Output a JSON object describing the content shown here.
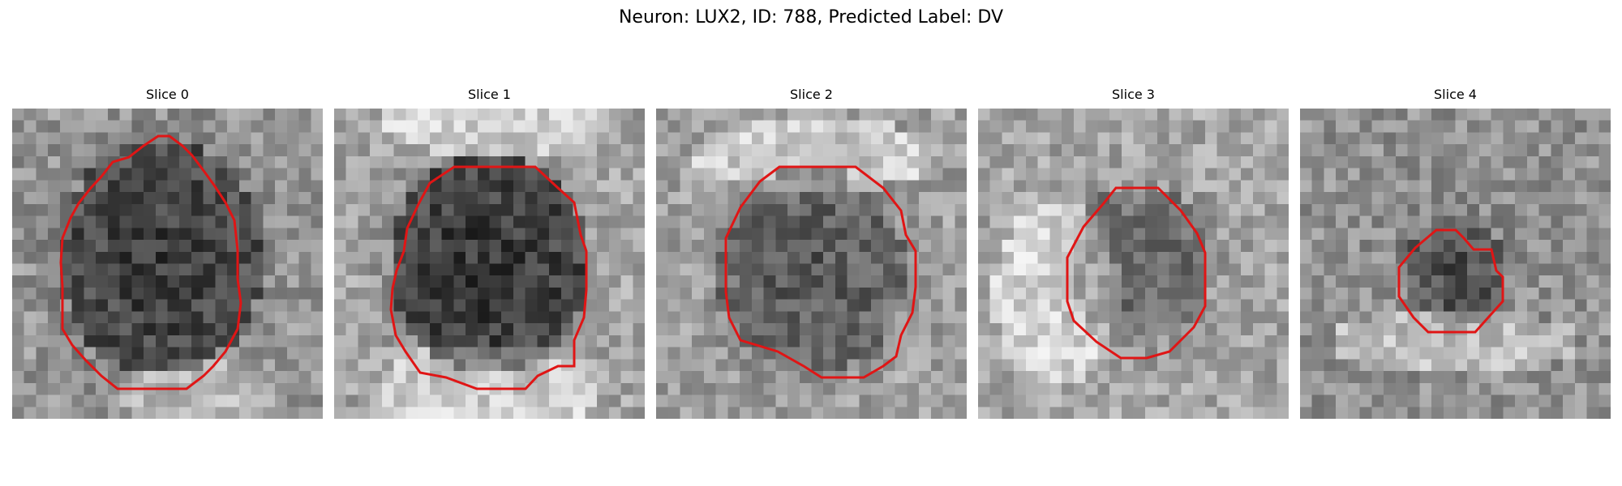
{
  "figure": {
    "title": "Neuron: LUX2, ID: 788, Predicted Label: DV"
  },
  "overlay_color": "#e01515",
  "slices": [
    {
      "title": "Slice 0"
    },
    {
      "title": "Slice 1"
    },
    {
      "title": "Slice 2"
    },
    {
      "title": "Slice 3"
    },
    {
      "title": "Slice 4"
    }
  ]
}
